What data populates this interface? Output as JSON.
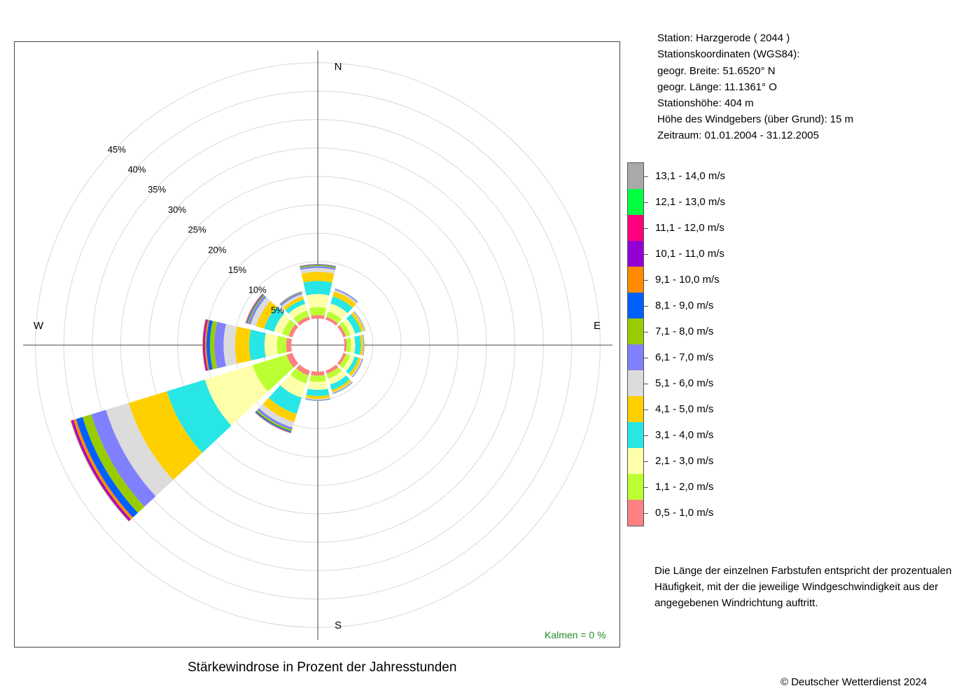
{
  "station_info": {
    "station": "Station:  Harzgerode  ( 2044 )",
    "coords_header": "Stationskoordinaten (WGS84):",
    "latitude": "geogr. Breite: 51.6520° N",
    "longitude": "geogr. Länge: 11.1361° O",
    "elevation": "Stationshöhe: 404 m",
    "sensor_height": "Höhe des Windgebers (über Grund): 15 m",
    "period": "Zeitraum: 01.01.2004 - 31.12.2005"
  },
  "legend": [
    {
      "label": "13,1 - 14,0 m/s",
      "color": "#A9A9A9"
    },
    {
      "label": "12,1 - 13,0 m/s",
      "color": "#00FF40"
    },
    {
      "label": "11,1 - 12,0 m/s",
      "color": "#FF0080"
    },
    {
      "label": "10,1 - 11,0 m/s",
      "color": "#9400D3"
    },
    {
      "label": "9,1 - 10,0 m/s",
      "color": "#FF8C00"
    },
    {
      "label": "8,1 - 9,0 m/s",
      "color": "#0060FF"
    },
    {
      "label": "7,1 - 8,0 m/s",
      "color": "#99CC00"
    },
    {
      "label": "6,1 - 7,0 m/s",
      "color": "#8080FF"
    },
    {
      "label": "5,1 - 6,0 m/s",
      "color": "#DCDCDC"
    },
    {
      "label": "4,1 - 5,0 m/s",
      "color": "#FFD000"
    },
    {
      "label": "3,1 - 4,0 m/s",
      "color": "#28E6E6"
    },
    {
      "label": "2,1 - 3,0 m/s",
      "color": "#FFFFAA"
    },
    {
      "label": "1,1 - 2,0 m/s",
      "color": "#BBFF33"
    },
    {
      "label": "0,5 - 1,0 m/s",
      "color": "#FF8080"
    }
  ],
  "explanation": "Die Länge der einzelnen Farbstufen entspricht der prozentualen Häufigkeit, mit der die jeweilige Windgeschwindigkeit aus der angegebenen Windrichtung auftritt.",
  "title": "Stärkewindrose in Prozent der Jahresstunden",
  "calm_label": "Kalmen  =  0 %",
  "copyright": "© Deutscher Wetterdienst  2024",
  "compass": {
    "n": "N",
    "e": "E",
    "s": "S",
    "w": "W"
  },
  "chart_data": {
    "type": "polar-stacked-bar",
    "ring_labels": [
      "5%",
      "10%",
      "15%",
      "20%",
      "25%",
      "30%",
      "35%",
      "40%",
      "45%"
    ],
    "ring_values": [
      5,
      10,
      15,
      20,
      25,
      30,
      35,
      40,
      45
    ],
    "directions_deg": [
      0,
      30,
      60,
      90,
      120,
      150,
      180,
      210,
      240,
      270,
      300,
      330
    ],
    "series": [
      {
        "name": "0,5 - 1,0 m/s",
        "values": [
          0.6,
          0.5,
          0.5,
          0.4,
          0.5,
          0.6,
          0.7,
          0.9,
          1.1,
          0.9,
          0.7,
          0.6
        ]
      },
      {
        "name": "1,1 - 2,0 m/s",
        "values": [
          1.4,
          1.0,
          0.8,
          0.8,
          0.8,
          0.9,
          1.1,
          1.5,
          6.2,
          1.6,
          1.2,
          1.1
        ]
      },
      {
        "name": "2,1 - 3,0 m/s",
        "values": [
          2.3,
          1.5,
          0.9,
          0.7,
          0.8,
          1.1,
          1.4,
          2.6,
          8.8,
          2.2,
          1.5,
          1.2
        ]
      },
      {
        "name": "3,1 - 4,0 m/s",
        "values": [
          2.3,
          1.3,
          1.1,
          1.0,
          0.7,
          1.0,
          1.1,
          3.0,
          7.0,
          2.7,
          1.8,
          0.8
        ]
      },
      {
        "name": "4,1 - 5,0 m/s",
        "values": [
          1.6,
          0.9,
          0.5,
          0.4,
          0.5,
          0.4,
          0.5,
          1.5,
          7.0,
          2.5,
          1.5,
          0.6
        ]
      },
      {
        "name": "5,1 - 6,0 m/s",
        "values": [
          0.7,
          0.3,
          0.15,
          0.1,
          0.2,
          0.15,
          0.15,
          1.0,
          4.2,
          2.0,
          1.0,
          0.4
        ]
      },
      {
        "name": "6,1 - 7,0 m/s",
        "values": [
          0.3,
          0.15,
          0.1,
          0.1,
          0.1,
          0.1,
          0.1,
          0.4,
          2.7,
          1.6,
          0.4,
          0.3
        ]
      },
      {
        "name": "7,1 - 8,0 m/s",
        "values": [
          0.2,
          0.05,
          0.05,
          0.05,
          0.05,
          0.05,
          0.05,
          0.3,
          1.6,
          0.8,
          0.2,
          0.1
        ]
      },
      {
        "name": "8,1 - 9,0 m/s",
        "values": [
          0.1,
          0.03,
          0.0,
          0.0,
          0.03,
          0.03,
          0.03,
          0.2,
          1.2,
          0.6,
          0.15,
          0.05
        ]
      },
      {
        "name": "9,1 - 10,0 m/s",
        "values": [
          0.05,
          0.0,
          0.0,
          0.0,
          0.0,
          0.0,
          0.0,
          0.1,
          0.5,
          0.3,
          0.1,
          0.03
        ]
      },
      {
        "name": "10,1 - 11,0 m/s",
        "values": [
          0.03,
          0.0,
          0.0,
          0.0,
          0.0,
          0.0,
          0.0,
          0.05,
          0.3,
          0.2,
          0.05,
          0.02
        ]
      },
      {
        "name": "11,1 - 12,0 m/s",
        "values": [
          0.0,
          0.0,
          0.0,
          0.0,
          0.0,
          0.0,
          0.0,
          0.0,
          0.15,
          0.15,
          0.03,
          0.0
        ]
      },
      {
        "name": "12,1 - 13,0 m/s",
        "values": [
          0.0,
          0.0,
          0.0,
          0.0,
          0.0,
          0.0,
          0.0,
          0.0,
          0.05,
          0.05,
          0.0,
          0.0
        ]
      },
      {
        "name": "13,1 - 14,0 m/s",
        "values": [
          0.0,
          0.0,
          0.0,
          0.0,
          0.0,
          0.0,
          0.0,
          0.0,
          0.03,
          0.03,
          0.0,
          0.0
        ]
      }
    ],
    "colors": [
      "#FF8080",
      "#BBFF33",
      "#FFFFAA",
      "#28E6E6",
      "#FFD000",
      "#DCDCDC",
      "#8080FF",
      "#99CC00",
      "#0060FF",
      "#FF8C00",
      "#9400D3",
      "#FF0080",
      "#00FF40",
      "#A9A9A9"
    ]
  }
}
